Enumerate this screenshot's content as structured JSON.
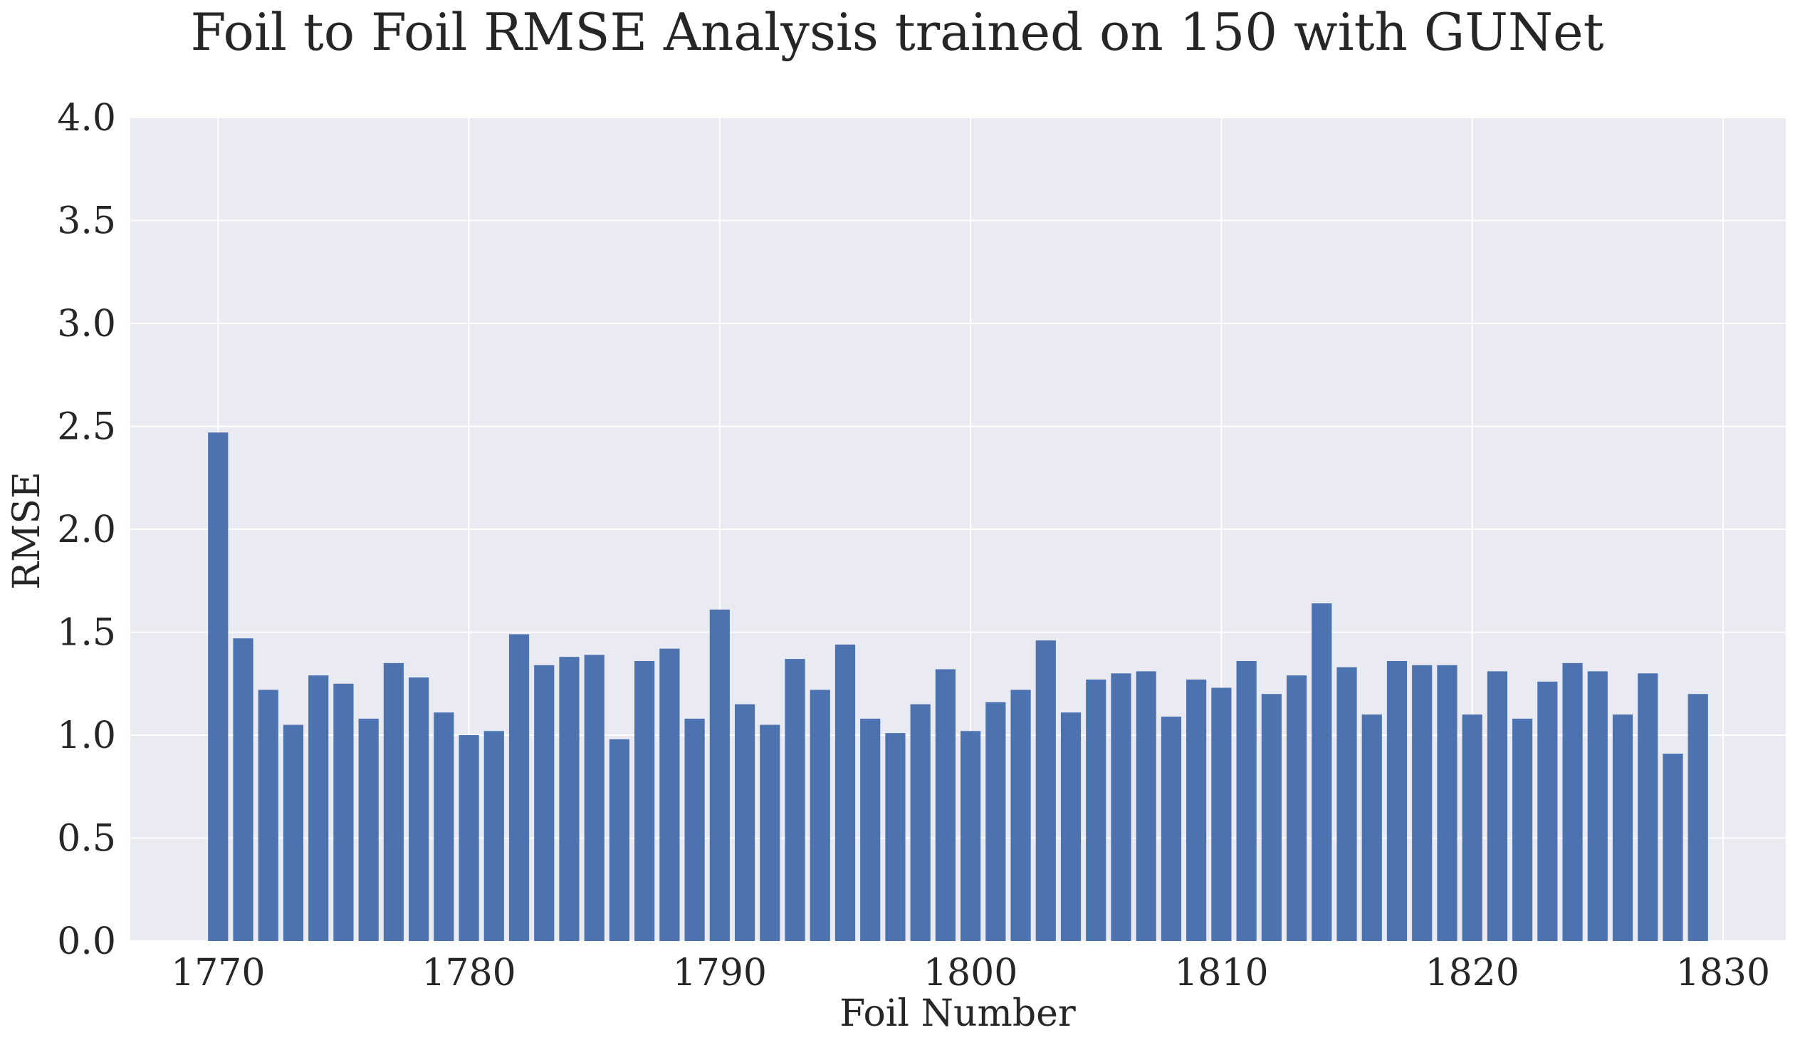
{
  "chart_data": {
    "type": "bar",
    "title": "Foil to Foil RMSE Analysis  trained on 150 with GUNet",
    "xlabel": "Foil Number",
    "ylabel": "RMSE",
    "xlim": [
      1766.5,
      1832.5
    ],
    "ylim": [
      0,
      4.0
    ],
    "xticks": [
      1770,
      1780,
      1790,
      1800,
      1810,
      1820,
      1830
    ],
    "yticks": [
      0.0,
      0.5,
      1.0,
      1.5,
      2.0,
      2.5,
      3.0,
      3.5,
      4.0
    ],
    "ytick_labels": [
      "0.0",
      "0.5",
      "1.0",
      "1.5",
      "2.0",
      "2.5",
      "3.0",
      "3.5",
      "4.0"
    ],
    "grid": true,
    "bar_color": "#4c72b0",
    "background_color": "#eaeaf2",
    "x": [
      1770,
      1771,
      1772,
      1773,
      1774,
      1775,
      1776,
      1777,
      1778,
      1779,
      1780,
      1781,
      1782,
      1783,
      1784,
      1785,
      1786,
      1787,
      1788,
      1789,
      1790,
      1791,
      1792,
      1793,
      1794,
      1795,
      1796,
      1797,
      1798,
      1799,
      1800,
      1801,
      1802,
      1803,
      1804,
      1805,
      1806,
      1807,
      1808,
      1809,
      1810,
      1811,
      1812,
      1813,
      1814,
      1815,
      1816,
      1817,
      1818,
      1819,
      1820,
      1821,
      1822,
      1823,
      1824,
      1825,
      1826,
      1827,
      1828,
      1829
    ],
    "values": [
      2.47,
      1.47,
      1.22,
      1.05,
      1.29,
      1.25,
      1.08,
      1.35,
      1.28,
      1.11,
      1.0,
      1.02,
      1.49,
      1.34,
      1.38,
      1.39,
      0.98,
      1.36,
      1.42,
      1.08,
      1.61,
      1.15,
      1.05,
      1.37,
      1.22,
      1.44,
      1.08,
      1.01,
      1.15,
      1.32,
      1.02,
      1.16,
      1.22,
      1.46,
      1.11,
      1.27,
      1.3,
      1.31,
      1.09,
      1.27,
      1.23,
      1.36,
      1.2,
      1.29,
      1.64,
      1.33,
      1.1,
      1.36,
      1.34,
      1.34,
      1.1,
      1.31,
      1.08,
      1.26,
      1.35,
      1.31,
      1.1,
      1.3,
      0.91,
      1.2
    ]
  }
}
